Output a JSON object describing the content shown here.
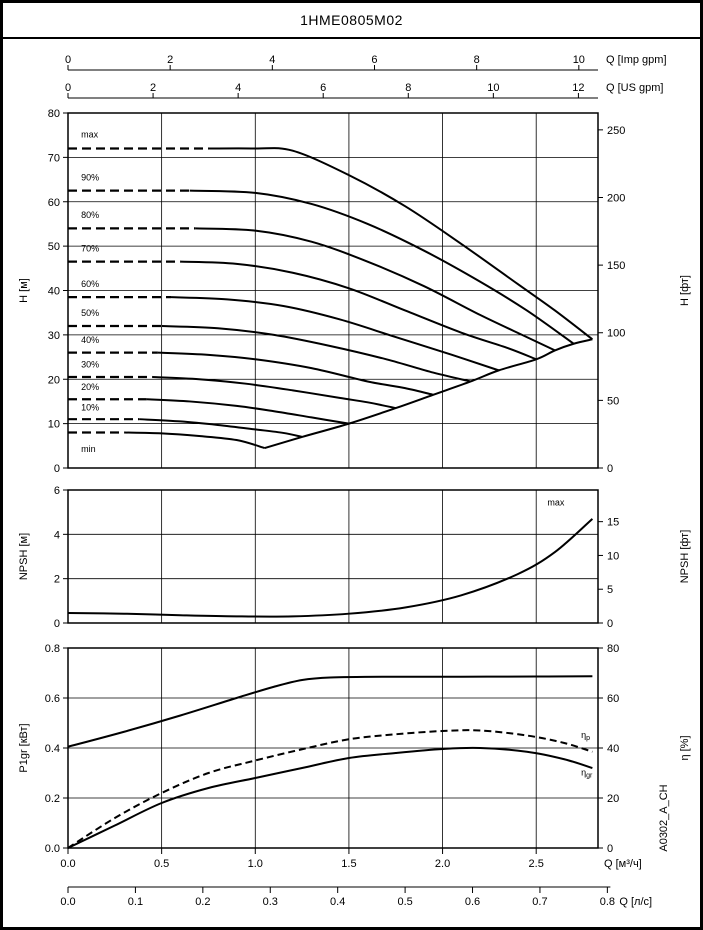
{
  "title": "1HME0805M02",
  "side_label": "A0302_A_CH",
  "colors": {
    "line": "#000000",
    "grid": "#000000",
    "background": "#ffffff"
  },
  "x_max_m3h": 2.83,
  "x_grid_values": [
    0.5,
    1.0,
    1.5,
    2.0,
    2.5
  ],
  "top_axes": [
    {
      "name": "imp-gpm",
      "label": "Q [Imp gpm]",
      "unit_to_m3h": 0.27276,
      "tick_values": [
        0,
        2,
        4,
        6,
        8,
        10
      ],
      "tick_labels": [
        "0",
        "2",
        "4",
        "6",
        "8",
        "10"
      ]
    },
    {
      "name": "us-gpm",
      "label": "Q [US gpm]",
      "unit_to_m3h": 0.22712,
      "tick_values": [
        0,
        2,
        4,
        6,
        8,
        10,
        12
      ],
      "tick_labels": [
        "0",
        "2",
        "4",
        "6",
        "8",
        "10",
        "12"
      ]
    }
  ],
  "bottom_axes": [
    {
      "name": "m3h",
      "label": "Q [м³/ч]",
      "unit_to_m3h": 1,
      "tick_values": [
        0,
        0.5,
        1.0,
        1.5,
        2.0,
        2.5
      ],
      "tick_labels": [
        "0.0",
        "0.5",
        "1.0",
        "1.5",
        "2.0",
        "2.5"
      ]
    },
    {
      "name": "ls",
      "label": "Q [л/с]",
      "unit_to_m3h": 3.6,
      "tick_values": [
        0,
        0.1,
        0.2,
        0.3,
        0.4,
        0.5,
        0.6,
        0.7,
        0.8
      ],
      "tick_labels": [
        "0.0",
        "0.1",
        "0.2",
        "0.3",
        "0.4",
        "0.5",
        "0.6",
        "0.7",
        "0.8"
      ]
    }
  ],
  "chart_data": [
    {
      "id": "head",
      "type": "line",
      "x_range": [
        0,
        2.83
      ],
      "y_left": {
        "label": "H [м]",
        "min": 0,
        "max": 80,
        "tick_values": [
          0,
          10,
          20,
          30,
          40,
          50,
          60,
          70,
          80
        ],
        "tick_labels": [
          "0",
          "10",
          "20",
          "30",
          "40",
          "50",
          "60",
          "70",
          "80"
        ],
        "grid_values": [
          10,
          20,
          30,
          40,
          50,
          60,
          70
        ]
      },
      "y_right": {
        "label": "H [фт]",
        "unit_to_m": 0.3048,
        "tick_values": [
          0,
          50,
          100,
          150,
          200,
          250
        ],
        "tick_labels": [
          "0",
          "50",
          "100",
          "150",
          "200",
          "250"
        ]
      },
      "curves": [
        {
          "name": "max",
          "label": "max",
          "label_pos": [
            0.07,
            74.5
          ],
          "dashed": [
            [
              0,
              72
            ],
            [
              0.75,
              72
            ]
          ],
          "solid": [
            [
              0.75,
              72
            ],
            [
              1.0,
              72
            ],
            [
              1.2,
              71.5
            ],
            [
              1.5,
              66
            ],
            [
              1.8,
              59
            ],
            [
              2.1,
              50.5
            ],
            [
              2.4,
              41.5
            ],
            [
              2.6,
              35.5
            ],
            [
              2.8,
              29
            ]
          ]
        },
        {
          "name": "90pct",
          "label": "90%",
          "label_pos": [
            0.07,
            64.8
          ],
          "dashed": [
            [
              0,
              62.5
            ],
            [
              0.65,
              62.5
            ]
          ],
          "solid": [
            [
              0.65,
              62.5
            ],
            [
              1.0,
              62
            ],
            [
              1.3,
              59.5
            ],
            [
              1.6,
              55
            ],
            [
              1.9,
              49
            ],
            [
              2.2,
              42
            ],
            [
              2.45,
              35.5
            ],
            [
              2.7,
              28
            ]
          ]
        },
        {
          "name": "80pct",
          "label": "80%",
          "label_pos": [
            0.07,
            56.3
          ],
          "dashed": [
            [
              0,
              54
            ],
            [
              0.68,
              54
            ]
          ],
          "solid": [
            [
              0.68,
              54
            ],
            [
              1.0,
              53.5
            ],
            [
              1.3,
              51
            ],
            [
              1.6,
              46.5
            ],
            [
              1.9,
              41
            ],
            [
              2.2,
              34.5
            ],
            [
              2.45,
              29.5
            ],
            [
              2.6,
              26.5
            ]
          ]
        },
        {
          "name": "70pct",
          "label": "70%",
          "label_pos": [
            0.07,
            48.8
          ],
          "dashed": [
            [
              0,
              46.5
            ],
            [
              0.6,
              46.5
            ]
          ],
          "solid": [
            [
              0.6,
              46.5
            ],
            [
              0.9,
              46
            ],
            [
              1.2,
              44
            ],
            [
              1.5,
              40.5
            ],
            [
              1.8,
              35.5
            ],
            [
              2.1,
              30.5
            ],
            [
              2.35,
              27
            ],
            [
              2.5,
              24.5
            ]
          ]
        },
        {
          "name": "60pct",
          "label": "60%",
          "label_pos": [
            0.07,
            40.8
          ],
          "dashed": [
            [
              0,
              38.5
            ],
            [
              0.55,
              38.5
            ]
          ],
          "solid": [
            [
              0.55,
              38.5
            ],
            [
              0.85,
              38
            ],
            [
              1.15,
              36.5
            ],
            [
              1.45,
              33.5
            ],
            [
              1.75,
              29.5
            ],
            [
              2.05,
              25.5
            ],
            [
              2.3,
              22
            ]
          ]
        },
        {
          "name": "50pct",
          "label": "50%",
          "label_pos": [
            0.07,
            34.2
          ],
          "dashed": [
            [
              0,
              32
            ],
            [
              0.5,
              32
            ]
          ],
          "solid": [
            [
              0.5,
              32
            ],
            [
              0.8,
              31.5
            ],
            [
              1.1,
              30
            ],
            [
              1.4,
              27.5
            ],
            [
              1.7,
              24.5
            ],
            [
              1.95,
              21.5
            ],
            [
              2.15,
              19.5
            ]
          ]
        },
        {
          "name": "40pct",
          "label": "40%",
          "label_pos": [
            0.07,
            28.2
          ],
          "dashed": [
            [
              0,
              26
            ],
            [
              0.48,
              26
            ]
          ],
          "solid": [
            [
              0.48,
              26
            ],
            [
              0.75,
              25.5
            ],
            [
              1.0,
              24.5
            ],
            [
              1.3,
              22.5
            ],
            [
              1.6,
              19.5
            ],
            [
              1.8,
              18
            ],
            [
              1.95,
              16.5
            ]
          ]
        },
        {
          "name": "30pct",
          "label": "30%",
          "label_pos": [
            0.07,
            22.6
          ],
          "dashed": [
            [
              0,
              20.5
            ],
            [
              0.45,
              20.5
            ]
          ],
          "solid": [
            [
              0.45,
              20.5
            ],
            [
              0.7,
              20
            ],
            [
              0.95,
              19
            ],
            [
              1.2,
              17.5
            ],
            [
              1.45,
              15.8
            ],
            [
              1.6,
              14.8
            ],
            [
              1.75,
              13.5
            ]
          ]
        },
        {
          "name": "20pct",
          "label": "20%",
          "label_pos": [
            0.07,
            17.6
          ],
          "dashed": [
            [
              0,
              15.5
            ],
            [
              0.42,
              15.5
            ]
          ],
          "solid": [
            [
              0.42,
              15.5
            ],
            [
              0.65,
              15
            ],
            [
              0.9,
              14
            ],
            [
              1.1,
              12.8
            ],
            [
              1.3,
              11.4
            ],
            [
              1.5,
              10
            ]
          ]
        },
        {
          "name": "10pct",
          "label": "10%",
          "label_pos": [
            0.07,
            13.0
          ],
          "dashed": [
            [
              0,
              11
            ],
            [
              0.38,
              11
            ]
          ],
          "solid": [
            [
              0.38,
              11
            ],
            [
              0.6,
              10.5
            ],
            [
              0.8,
              9.7
            ],
            [
              1.0,
              8.7
            ],
            [
              1.15,
              7.9
            ],
            [
              1.25,
              7
            ]
          ]
        },
        {
          "name": "min",
          "label": "min",
          "label_pos": [
            0.07,
            3.6
          ],
          "dashed": [
            [
              0,
              8
            ],
            [
              0.3,
              8
            ]
          ],
          "solid": [
            [
              0.3,
              8
            ],
            [
              0.5,
              7.8
            ],
            [
              0.7,
              7.2
            ],
            [
              0.9,
              6.3
            ],
            [
              1.05,
              4.5
            ]
          ]
        },
        {
          "name": "envelope",
          "label": "",
          "dashed": [],
          "solid": [
            [
              1.05,
              4.5
            ],
            [
              1.25,
              7
            ],
            [
              1.5,
              10
            ],
            [
              1.75,
              13.5
            ],
            [
              1.95,
              16.5
            ],
            [
              2.15,
              19.5
            ],
            [
              2.3,
              22
            ],
            [
              2.5,
              24.5
            ],
            [
              2.6,
              26.5
            ],
            [
              2.7,
              28
            ],
            [
              2.8,
              29
            ]
          ]
        }
      ]
    },
    {
      "id": "npsh",
      "type": "line",
      "x_range": [
        0,
        2.83
      ],
      "y_left": {
        "label": "NPSH [м]",
        "min": 0,
        "max": 6,
        "tick_values": [
          0,
          2,
          4,
          6
        ],
        "tick_labels": [
          "0",
          "2",
          "4",
          "6"
        ],
        "grid_values": [
          2,
          4
        ]
      },
      "y_right": {
        "label": "NPSH [фт]",
        "unit_to_m": 0.3048,
        "tick_values": [
          0,
          5,
          10,
          15
        ],
        "tick_labels": [
          "0",
          "5",
          "10",
          "15"
        ]
      },
      "curves": [
        {
          "name": "npsh-max",
          "label": "max",
          "label_pos": [
            2.56,
            5.3
          ],
          "dashed": [],
          "solid": [
            [
              0,
              0.45
            ],
            [
              0.3,
              0.42
            ],
            [
              0.6,
              0.35
            ],
            [
              0.9,
              0.3
            ],
            [
              1.2,
              0.3
            ],
            [
              1.5,
              0.42
            ],
            [
              1.8,
              0.7
            ],
            [
              2.1,
              1.25
            ],
            [
              2.4,
              2.2
            ],
            [
              2.6,
              3.2
            ],
            [
              2.8,
              4.7
            ]
          ]
        }
      ]
    },
    {
      "id": "power",
      "type": "line",
      "x_range": [
        0,
        2.83
      ],
      "y_left": {
        "label": "P1gr [кВт]",
        "min": 0,
        "max": 0.8,
        "tick_values": [
          0,
          0.2,
          0.4,
          0.6,
          0.8
        ],
        "tick_labels": [
          "0.0",
          "0.2",
          "0.4",
          "0.6",
          "0.8"
        ],
        "grid_values": [
          0.2,
          0.4,
          0.6
        ]
      },
      "y_right": {
        "label": "η [%]",
        "max": 80,
        "tick_values": [
          0,
          20,
          40,
          60,
          80
        ],
        "tick_labels": [
          "0",
          "20",
          "40",
          "60",
          "80"
        ]
      },
      "curves": [
        {
          "name": "p1gr",
          "label": "",
          "axis": "left",
          "dashed": [],
          "solid": [
            [
              0,
              0.405
            ],
            [
              0.3,
              0.465
            ],
            [
              0.6,
              0.53
            ],
            [
              0.9,
              0.6
            ],
            [
              1.1,
              0.645
            ],
            [
              1.25,
              0.672
            ],
            [
              1.4,
              0.682
            ],
            [
              1.7,
              0.685
            ],
            [
              2.1,
              0.685
            ],
            [
              2.5,
              0.686
            ],
            [
              2.8,
              0.687
            ]
          ]
        },
        {
          "name": "eta-p",
          "label": "η",
          "label_sub": "p",
          "axis": "right",
          "style": "dashed",
          "label_pos": [
            2.74,
            44
          ],
          "dashed": [],
          "solid": [
            [
              0,
              0
            ],
            [
              0.25,
              12
            ],
            [
              0.5,
              22
            ],
            [
              0.75,
              30
            ],
            [
              1.0,
              35
            ],
            [
              1.25,
              39.5
            ],
            [
              1.5,
              43.5
            ],
            [
              1.75,
              45.5
            ],
            [
              2.0,
              46.8
            ],
            [
              2.2,
              47
            ],
            [
              2.45,
              45
            ],
            [
              2.65,
              42
            ],
            [
              2.8,
              38.5
            ]
          ]
        },
        {
          "name": "eta-gr",
          "label": "η",
          "label_sub": "gr",
          "axis": "right",
          "style": "solid",
          "label_pos": [
            2.74,
            29
          ],
          "dashed": [],
          "solid": [
            [
              0,
              0
            ],
            [
              0.25,
              9
            ],
            [
              0.5,
              18
            ],
            [
              0.75,
              24
            ],
            [
              1.0,
              28
            ],
            [
              1.25,
              32
            ],
            [
              1.5,
              36
            ],
            [
              1.75,
              38
            ],
            [
              2.0,
              39.6
            ],
            [
              2.2,
              40
            ],
            [
              2.45,
              38.5
            ],
            [
              2.65,
              35.5
            ],
            [
              2.8,
              32
            ]
          ]
        }
      ]
    }
  ]
}
